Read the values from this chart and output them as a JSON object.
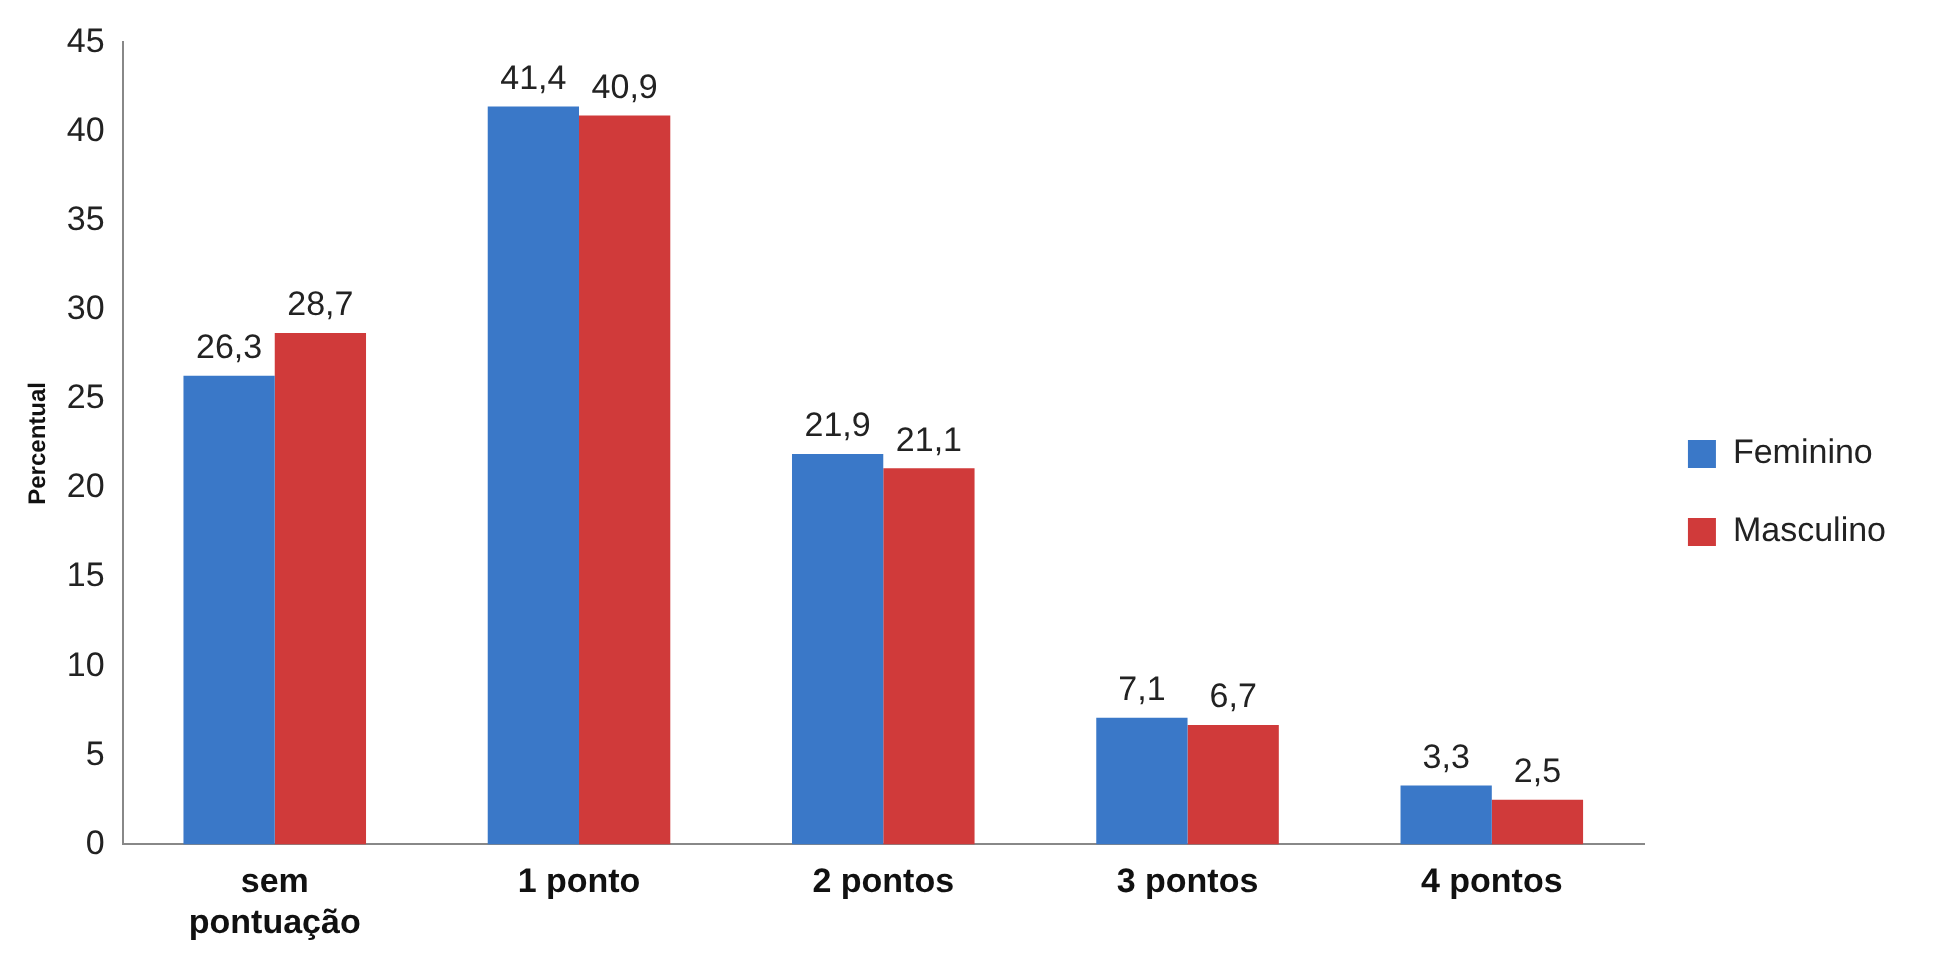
{
  "chart_data": {
    "type": "bar",
    "ylabel": "Percentual",
    "categories": [
      "sem pontuação",
      "1 ponto",
      "2 pontos",
      "3 pontos",
      "4 pontos"
    ],
    "series": [
      {
        "name": "Feminino",
        "color": "#3a78c8",
        "values": [
          26.3,
          41.4,
          21.9,
          7.1,
          3.3
        ],
        "value_labels": [
          "26,3",
          "41,4",
          "21,9",
          "7,1",
          "3,3"
        ]
      },
      {
        "name": "Masculino",
        "color": "#d03a3a",
        "values": [
          28.7,
          40.9,
          21.1,
          6.7,
          2.5
        ],
        "value_labels": [
          "28,7",
          "40,9",
          "21,1",
          "6,7",
          "2,5"
        ]
      }
    ],
    "ylim": [
      0,
      45
    ],
    "yticks": [
      0,
      5,
      10,
      15,
      20,
      25,
      30,
      35,
      40,
      45
    ],
    "grid": false,
    "legend": "right"
  }
}
